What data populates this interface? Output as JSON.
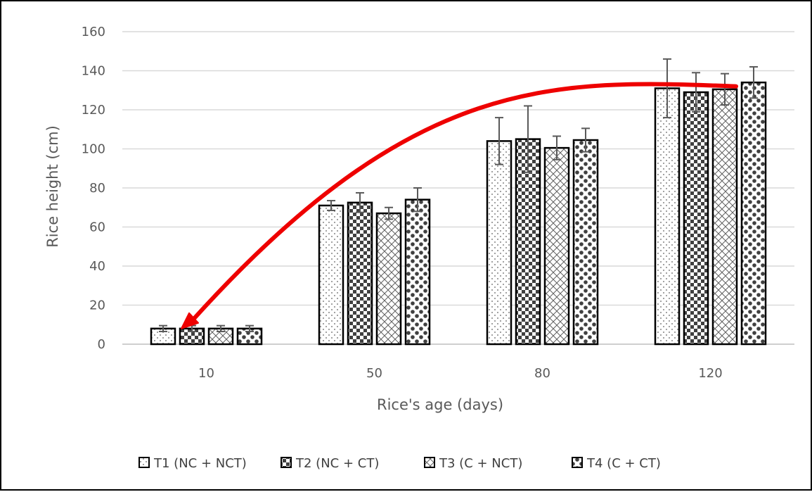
{
  "chart_data": {
    "type": "bar",
    "title": "",
    "xlabel": "Rice's age (days)",
    "ylabel": "Rice height (cm)",
    "categories": [
      "10",
      "50",
      "80",
      "120"
    ],
    "ylim": [
      0,
      160
    ],
    "yticks": [
      0,
      20,
      40,
      60,
      80,
      100,
      120,
      140,
      160
    ],
    "grid": true,
    "legend_position": "bottom",
    "series": [
      {
        "name": "T1 (NC + NCT)",
        "pattern": "dots",
        "values": [
          8,
          71,
          104,
          131
        ],
        "errors": [
          1.5,
          2.5,
          12,
          15
        ]
      },
      {
        "name": "T2 (NC + CT)",
        "pattern": "checker",
        "values": [
          8,
          72.5,
          105,
          129
        ],
        "errors": [
          1.5,
          5,
          17,
          10
        ]
      },
      {
        "name": "T3 (C + NCT)",
        "pattern": "crosshatch",
        "values": [
          8,
          67,
          100.5,
          130.5
        ],
        "errors": [
          1.5,
          3,
          6,
          8
        ]
      },
      {
        "name": "T4 (C + CT)",
        "pattern": "big-dots",
        "values": [
          8,
          74,
          104.5,
          134
        ],
        "errors": [
          1.5,
          6,
          6,
          8
        ]
      }
    ],
    "annotations": [
      {
        "type": "curved-arrow",
        "color": "#ee0000",
        "from": {
          "x": "120",
          "y": 132
        },
        "to": {
          "x": "10",
          "y": 8
        }
      }
    ]
  },
  "colors": {
    "gridline": "#d9d9d9",
    "axis": "#bfbfbf",
    "bar_edge": "#000000",
    "pattern_fill": "#404040",
    "error_bar": "#595959",
    "arrow": "#ee0000"
  }
}
